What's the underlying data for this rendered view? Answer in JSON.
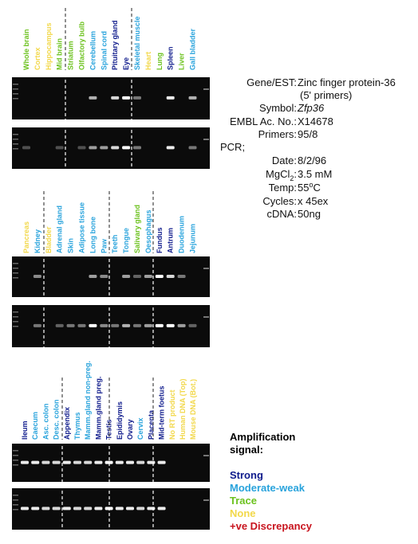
{
  "panels": [
    {
      "lanes": [
        {
          "label": "Whole brain",
          "color": "#6cc21e"
        },
        {
          "label": "Cortex",
          "color": "#f2d84a"
        },
        {
          "label": "Hippocampus",
          "color": "#f2d84a"
        },
        {
          "label": "Mid brain",
          "color": "#6cc21e"
        },
        {
          "label": "Striatum",
          "color": "#6cc21e"
        },
        {
          "label": "Olfactory bulb",
          "color": "#6cc21e"
        },
        {
          "label": "Cerebellum",
          "color": "#29a3dc"
        },
        {
          "label": "Spinal cord",
          "color": "#29a3dc"
        },
        {
          "label": "Pituitary gland",
          "color": "#0f1b8c"
        },
        {
          "label": "Eye",
          "color": "#0f1b8c"
        },
        {
          "label": "Skeletal muscle",
          "color": "#29a3dc"
        },
        {
          "label": "Heart",
          "color": "#f2d84a"
        },
        {
          "label": "Lung",
          "color": "#6cc21e"
        },
        {
          "label": "Spleen",
          "color": "#0f1b8c"
        },
        {
          "label": "Liver",
          "color": "#6cc21e"
        },
        {
          "label": "Gall bladder",
          "color": "#29a3dc"
        }
      ]
    },
    {
      "lanes": [
        {
          "label": "Pancreas",
          "color": "#f2d84a"
        },
        {
          "label": "Kidney",
          "color": "#29a3dc"
        },
        {
          "label": "Bladder",
          "color": "#f2d84a"
        },
        {
          "label": "Adrenal gland",
          "color": "#29a3dc"
        },
        {
          "label": "Skin",
          "color": "#29a3dc"
        },
        {
          "label": "Adipose tissue",
          "color": "#29a3dc"
        },
        {
          "label": "Long bone",
          "color": "#29a3dc"
        },
        {
          "label": "Paw",
          "color": "#29a3dc"
        },
        {
          "label": "Teeth",
          "color": "#29a3dc"
        },
        {
          "label": "Tongue",
          "color": "#29a3dc"
        },
        {
          "label": "Salivary gland",
          "color": "#6cc21e"
        },
        {
          "label": "Oesophagus",
          "color": "#29a3dc"
        },
        {
          "label": "Fundus",
          "color": "#0f1b8c"
        },
        {
          "label": "Antrum",
          "color": "#0f1b8c"
        },
        {
          "label": "Duodenum",
          "color": "#29a3dc"
        },
        {
          "label": "Jejunum",
          "color": "#29a3dc"
        }
      ]
    },
    {
      "lanes": [
        {
          "label": "Ileum",
          "color": "#0f1b8c"
        },
        {
          "label": "Caecum",
          "color": "#29a3dc"
        },
        {
          "label": "Asc. colon",
          "color": "#29a3dc"
        },
        {
          "label": "Desc. colon",
          "color": "#29a3dc"
        },
        {
          "label": "Appendix",
          "color": "#0f1b8c"
        },
        {
          "label": "Thymus",
          "color": "#29a3dc"
        },
        {
          "label": "Mamm.gland non-preg.",
          "color": "#29a3dc"
        },
        {
          "label": "Mamm.gland preg.",
          "color": "#0f1b8c"
        },
        {
          "label": "Testis",
          "color": "#0f1b8c"
        },
        {
          "label": "Epididymis",
          "color": "#0f1b8c"
        },
        {
          "label": "Ovary",
          "color": "#0f1b8c"
        },
        {
          "label": "Cervix",
          "color": "#29a3dc"
        },
        {
          "label": "Placenta",
          "color": "#0f1b8c"
        },
        {
          "label": "Mid-term foetus",
          "color": "#0f1b8c"
        },
        {
          "label": "No RT product",
          "color": "#f2d84a"
        },
        {
          "label": "Human DNA (Top)",
          "color": "#f2d84a"
        },
        {
          "label": "Mouse DNA (Bot.)",
          "color": "#f2d84a"
        }
      ]
    }
  ],
  "info": {
    "rows": [
      {
        "label": "Gene/EST:",
        "value": "Zinc finger protein-36"
      },
      {
        "value": "(5' primers)"
      },
      {
        "label": "Symbol:",
        "value": "Zfp36",
        "italic": true
      },
      {
        "label": "EMBL Ac. No.:",
        "value": "X14678"
      },
      {
        "label": "Primers:",
        "value": "95/8"
      },
      {
        "heading": "PCR;"
      },
      {
        "label": "Date:",
        "value": "8/2/96"
      },
      {
        "label": "MgCl",
        "label_sub": "2",
        "label_tail": ":",
        "value": "3.5 mM"
      },
      {
        "label": "Temp:",
        "value": "55",
        "value_sup": "o",
        "value_tail": "C"
      },
      {
        "label": "Cycles:",
        "value": "x 45ex"
      },
      {
        "label": "cDNA:",
        "value": " 50ng"
      }
    ]
  },
  "legend": {
    "title": [
      "Amplification",
      "signal:"
    ],
    "items": [
      {
        "label": "Strong",
        "color": "#0f1b8c"
      },
      {
        "label": "Moderate-weak",
        "color": "#29a3dc"
      },
      {
        "label": "Trace",
        "color": "#6cc21e"
      },
      {
        "label": "None",
        "color": "#f2d84a"
      },
      {
        "label": "+ve Discrepancy",
        "color": "#c8141e"
      }
    ]
  }
}
